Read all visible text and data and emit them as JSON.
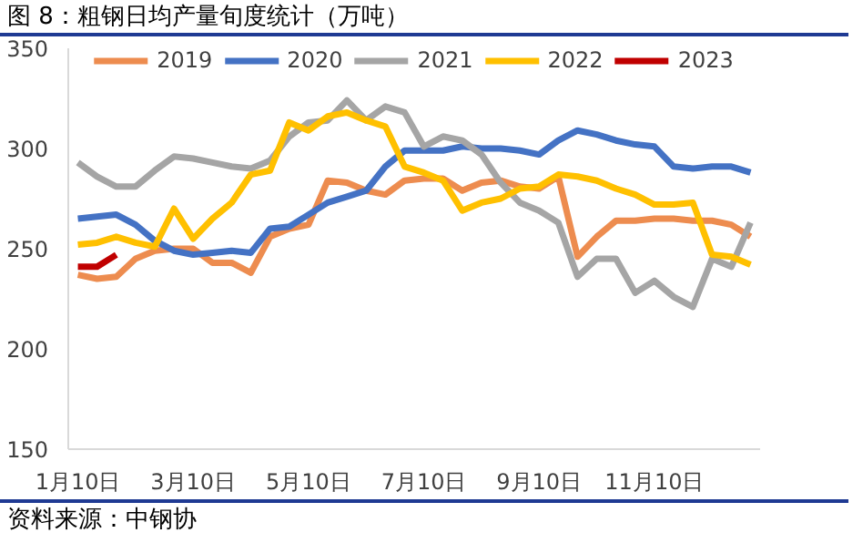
{
  "chart_data": {
    "type": "line",
    "title": "图 8：粗钢日均产量旬度统计（万吨）",
    "annotations": [
      "资料来源：中钢协"
    ],
    "categories": [
      "1月10日",
      null,
      null,
      null,
      null,
      null,
      "3月10日",
      null,
      null,
      null,
      null,
      null,
      "5月10日",
      null,
      null,
      null,
      null,
      null,
      "7月10日",
      null,
      null,
      null,
      null,
      null,
      "9月10日",
      null,
      null,
      null,
      null,
      null,
      "11月10日",
      null,
      null,
      null,
      null,
      null
    ],
    "ylim": [
      150,
      350
    ],
    "yticks": [
      150,
      200,
      250,
      300,
      350
    ],
    "grid": false,
    "legend": "top",
    "series": [
      {
        "name": "2019",
        "color": "#ed8c4f",
        "values": [
          237,
          235,
          236,
          245,
          249,
          250,
          250,
          243,
          243,
          238,
          256,
          260,
          262,
          284,
          283,
          279,
          277,
          284,
          285,
          285,
          279,
          283,
          284,
          281,
          280,
          286,
          246,
          256,
          264,
          264,
          265,
          265,
          264,
          264,
          262,
          256
        ]
      },
      {
        "name": "2020",
        "color": "#4472c4",
        "values": [
          265,
          266,
          267,
          262,
          254,
          249,
          247,
          248,
          249,
          248,
          260,
          261,
          267,
          273,
          276,
          279,
          291,
          299,
          299,
          299,
          301,
          300,
          300,
          299,
          297,
          304,
          309,
          307,
          304,
          302,
          301,
          291,
          290,
          291,
          291,
          288
        ]
      },
      {
        "name": "2021",
        "color": "#a5a5a5",
        "values": [
          293,
          286,
          281,
          281,
          289,
          296,
          295,
          293,
          291,
          290,
          294,
          306,
          313,
          314,
          324,
          314,
          321,
          318,
          301,
          306,
          304,
          297,
          283,
          273,
          269,
          263,
          236,
          245,
          245,
          228,
          234,
          226,
          221,
          245,
          241,
          263
        ]
      },
      {
        "name": "2022",
        "color": "#ffc000",
        "values": [
          252,
          253,
          256,
          253,
          251,
          270,
          255,
          265,
          273,
          287,
          289,
          313,
          309,
          316,
          318,
          314,
          311,
          291,
          288,
          284,
          269,
          273,
          275,
          280,
          281,
          287,
          286,
          284,
          280,
          277,
          272,
          272,
          273,
          247,
          246,
          242
        ]
      },
      {
        "name": "2023",
        "color": "#c00000",
        "values": [
          241,
          241,
          247,
          null,
          null,
          null,
          null,
          null,
          null,
          null,
          null,
          null,
          null,
          null,
          null,
          null,
          null,
          null,
          null,
          null,
          null,
          null,
          null,
          null,
          null,
          null,
          null,
          null,
          null,
          null,
          null,
          null,
          null,
          null,
          null,
          null
        ]
      }
    ]
  }
}
